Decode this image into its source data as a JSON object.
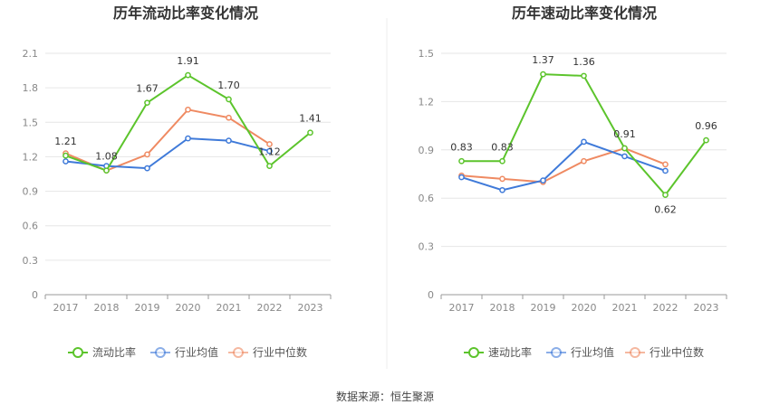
{
  "source_label": "数据来源：恒生聚源",
  "legend_labels": {
    "industry_avg": "行业均值",
    "industry_median": "行业中位数"
  },
  "colors": {
    "green": "#5cc42c",
    "blue": "#3f7ad9",
    "orange": "#ef8a62"
  },
  "chart_data": [
    {
      "type": "line",
      "title": "历年流动比率变化情况",
      "categories": [
        "2017",
        "2018",
        "2019",
        "2020",
        "2021",
        "2022",
        "2023"
      ],
      "ylim": [
        0,
        2.1
      ],
      "yticks": [
        "0",
        "0.3",
        "0.6",
        "0.9",
        "1.2",
        "1.5",
        "1.8",
        "2.1"
      ],
      "grid": true,
      "legend_position": "bottom",
      "series": [
        {
          "name": "流动比率",
          "color": "#5cc42c",
          "values": [
            1.21,
            1.08,
            1.67,
            1.91,
            1.7,
            1.12,
            1.41
          ],
          "labels": [
            "1.21",
            "1.08",
            "1.67",
            "1.91",
            "1.70",
            "1.12",
            "1.41"
          ]
        },
        {
          "name": "行业均值",
          "color": "#3f7ad9",
          "values": [
            1.16,
            1.12,
            1.1,
            1.36,
            1.34,
            1.25,
            null
          ]
        },
        {
          "name": "行业中位数",
          "color": "#ef8a62",
          "values": [
            1.23,
            1.08,
            1.22,
            1.61,
            1.54,
            1.31,
            null
          ]
        }
      ]
    },
    {
      "type": "line",
      "title": "历年速动比率变化情况",
      "categories": [
        "2017",
        "2018",
        "2019",
        "2020",
        "2021",
        "2022",
        "2023"
      ],
      "ylim": [
        0,
        1.5
      ],
      "yticks": [
        "0",
        "0.3",
        "0.6",
        "0.9",
        "1.2",
        "1.5"
      ],
      "grid": true,
      "legend_position": "bottom",
      "series": [
        {
          "name": "速动比率",
          "color": "#5cc42c",
          "values": [
            0.83,
            0.83,
            1.37,
            1.36,
            0.91,
            0.62,
            0.96
          ],
          "labels": [
            "0.83",
            "0.83",
            "1.37",
            "1.36",
            "0.91",
            "0.62",
            "0.96"
          ]
        },
        {
          "name": "行业均值",
          "color": "#3f7ad9",
          "values": [
            0.73,
            0.65,
            0.71,
            0.95,
            0.86,
            0.77,
            null
          ]
        },
        {
          "name": "行业中位数",
          "color": "#ef8a62",
          "values": [
            0.74,
            0.72,
            0.7,
            0.83,
            0.91,
            0.81,
            null
          ]
        }
      ]
    }
  ]
}
